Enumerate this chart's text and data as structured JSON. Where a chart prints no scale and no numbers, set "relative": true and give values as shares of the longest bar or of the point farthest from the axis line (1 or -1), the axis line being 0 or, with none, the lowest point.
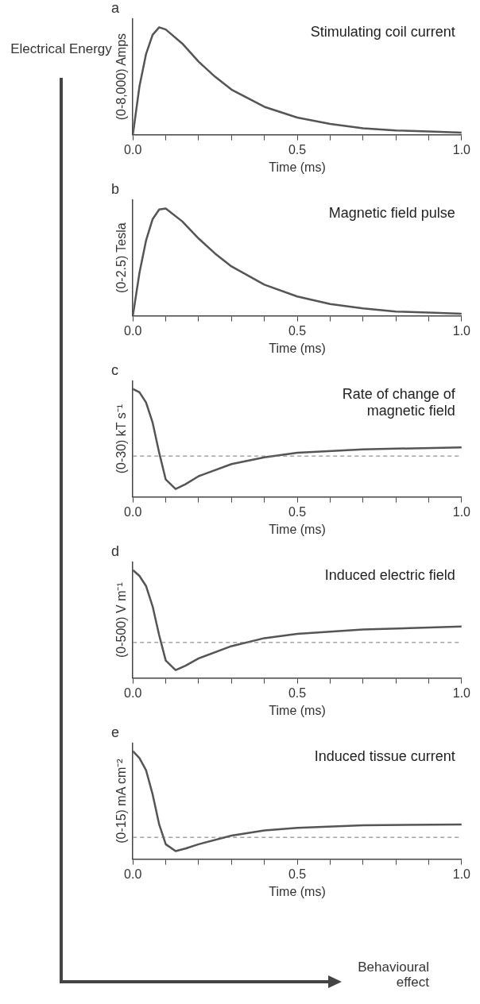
{
  "chart_data": [
    {
      "type": "line",
      "title": "a",
      "ylabel": "(0-8,000) Amps",
      "xlabel": "Time (ms)",
      "relative": true,
      "annotations": [
        "Stimulating coil current"
      ],
      "xlim": [
        0,
        1
      ],
      "xticks": [
        {
          "value": 0,
          "label": "0.0"
        },
        {
          "value": 0.1,
          "label": null
        },
        {
          "value": 0.2,
          "label": null
        },
        {
          "value": 0.3,
          "label": null
        },
        {
          "value": 0.4,
          "label": null
        },
        {
          "value": 0.5,
          "label": "0.5"
        },
        {
          "value": 0.6,
          "label": null
        },
        {
          "value": 0.7,
          "label": null
        },
        {
          "value": 0.8,
          "label": null
        },
        {
          "value": 0.9,
          "label": null
        },
        {
          "value": 1,
          "label": "1.0"
        }
      ],
      "grid": false,
      "marker": "none",
      "series": [
        {
          "color": "#555555",
          "x": [
            0,
            0.02,
            0.04,
            0.06,
            0.08,
            0.1,
            0.15,
            0.2,
            0.25,
            0.3,
            0.4,
            0.5,
            0.6,
            0.7,
            0.8,
            0.9,
            1
          ],
          "values": [
            0,
            0.45,
            0.75,
            0.93,
            1,
            0.98,
            0.85,
            0.68,
            0.54,
            0.42,
            0.26,
            0.16,
            0.1,
            0.06,
            0.04,
            0.03,
            0.02
          ]
        }
      ]
    },
    {
      "type": "line",
      "title": "b",
      "ylabel": "(0-2.5) Tesla",
      "xlabel": "Time (ms)",
      "relative": true,
      "annotations": [
        "Magnetic field pulse"
      ],
      "xlim": [
        0,
        1
      ],
      "xticks": [
        {
          "value": 0,
          "label": "0.0"
        },
        {
          "value": 0.1,
          "label": null
        },
        {
          "value": 0.2,
          "label": null
        },
        {
          "value": 0.3,
          "label": null
        },
        {
          "value": 0.4,
          "label": null
        },
        {
          "value": 0.5,
          "label": "0.5"
        },
        {
          "value": 0.6,
          "label": null
        },
        {
          "value": 0.7,
          "label": null
        },
        {
          "value": 0.8,
          "label": null
        },
        {
          "value": 0.9,
          "label": null
        },
        {
          "value": 1,
          "label": "1.0"
        }
      ],
      "grid": false,
      "marker": "none",
      "series": [
        {
          "color": "#555555",
          "x": [
            0,
            0.02,
            0.04,
            0.06,
            0.08,
            0.1,
            0.15,
            0.2,
            0.25,
            0.3,
            0.4,
            0.5,
            0.6,
            0.7,
            0.8,
            0.9,
            1
          ],
          "values": [
            0,
            0.4,
            0.7,
            0.9,
            0.99,
            1,
            0.88,
            0.72,
            0.58,
            0.46,
            0.29,
            0.18,
            0.11,
            0.07,
            0.04,
            0.03,
            0.02
          ]
        }
      ]
    },
    {
      "type": "line",
      "title": "c",
      "ylabel": "(0-30) kT s⁻¹",
      "xlabel": "Time (ms)",
      "relative": true,
      "annotations": [
        "Rate of change of magnetic field"
      ],
      "xlim": [
        0,
        1
      ],
      "xticks": [
        {
          "value": 0,
          "label": "0.0"
        },
        {
          "value": 0.1,
          "label": null
        },
        {
          "value": 0.2,
          "label": null
        },
        {
          "value": 0.3,
          "label": null
        },
        {
          "value": 0.4,
          "label": null
        },
        {
          "value": 0.5,
          "label": "0.5"
        },
        {
          "value": 0.6,
          "label": null
        },
        {
          "value": 0.7,
          "label": null
        },
        {
          "value": 0.8,
          "label": null
        },
        {
          "value": 0.9,
          "label": null
        },
        {
          "value": 1,
          "label": "1.0"
        }
      ],
      "grid": false,
      "marker": "none",
      "ref_lines": [
        {
          "axis": "y",
          "value": 0,
          "line_style": "dashed",
          "color": "#777777"
        }
      ],
      "series": [
        {
          "color": "#555555",
          "x": [
            0,
            0.02,
            0.04,
            0.06,
            0.08,
            0.1,
            0.13,
            0.16,
            0.2,
            0.3,
            0.4,
            0.5,
            0.7,
            1
          ],
          "values": [
            1,
            0.95,
            0.8,
            0.5,
            0.05,
            -0.35,
            -0.49,
            -0.42,
            -0.3,
            -0.12,
            -0.02,
            0.05,
            0.1,
            0.13
          ]
        }
      ]
    },
    {
      "type": "line",
      "title": "d",
      "ylabel": "(0-500) V m⁻¹",
      "xlabel": "Time (ms)",
      "relative": true,
      "annotations": [
        "Induced electric field"
      ],
      "xlim": [
        0,
        1
      ],
      "xticks": [
        {
          "value": 0,
          "label": "0.0"
        },
        {
          "value": 0.1,
          "label": null
        },
        {
          "value": 0.2,
          "label": null
        },
        {
          "value": 0.3,
          "label": null
        },
        {
          "value": 0.4,
          "label": null
        },
        {
          "value": 0.5,
          "label": "0.5"
        },
        {
          "value": 0.6,
          "label": null
        },
        {
          "value": 0.7,
          "label": null
        },
        {
          "value": 0.8,
          "label": null
        },
        {
          "value": 0.9,
          "label": null
        },
        {
          "value": 1,
          "label": "1.0"
        }
      ],
      "grid": false,
      "marker": "none",
      "ref_lines": [
        {
          "axis": "y",
          "value": 0,
          "line_style": "dashed",
          "color": "#777777"
        }
      ],
      "series": [
        {
          "color": "#555555",
          "x": [
            0,
            0.02,
            0.04,
            0.06,
            0.08,
            0.1,
            0.13,
            0.16,
            0.2,
            0.3,
            0.4,
            0.5,
            0.7,
            1
          ],
          "values": [
            1,
            0.92,
            0.78,
            0.5,
            0.1,
            -0.25,
            -0.38,
            -0.32,
            -0.22,
            -0.05,
            0.06,
            0.12,
            0.18,
            0.22
          ]
        }
      ]
    },
    {
      "type": "line",
      "title": "e",
      "ylabel": "(0-15) mA cm⁻²",
      "xlabel": "Time (ms)",
      "relative": true,
      "annotations": [
        "Induced tissue current"
      ],
      "xlim": [
        0,
        1
      ],
      "xticks": [
        {
          "value": 0,
          "label": "0.0"
        },
        {
          "value": 0.1,
          "label": null
        },
        {
          "value": 0.2,
          "label": null
        },
        {
          "value": 0.3,
          "label": null
        },
        {
          "value": 0.4,
          "label": null
        },
        {
          "value": 0.5,
          "label": "0.5"
        },
        {
          "value": 0.6,
          "label": null
        },
        {
          "value": 0.7,
          "label": null
        },
        {
          "value": 0.8,
          "label": null
        },
        {
          "value": 0.9,
          "label": null
        },
        {
          "value": 1,
          "label": "1.0"
        }
      ],
      "grid": false,
      "marker": "none",
      "ref_lines": [
        {
          "axis": "y",
          "value": 0,
          "line_style": "dashed",
          "color": "#777777"
        }
      ],
      "series": [
        {
          "color": "#555555",
          "x": [
            0,
            0.02,
            0.04,
            0.06,
            0.08,
            0.1,
            0.13,
            0.16,
            0.2,
            0.3,
            0.4,
            0.5,
            0.7,
            1
          ],
          "values": [
            1,
            0.92,
            0.78,
            0.5,
            0.15,
            -0.08,
            -0.16,
            -0.13,
            -0.08,
            0.02,
            0.08,
            0.11,
            0.14,
            0.15
          ]
        }
      ]
    },
    {
      "type": "other",
      "annotations": [
        "Electrical Energy",
        "Behavioural effect"
      ]
    }
  ]
}
